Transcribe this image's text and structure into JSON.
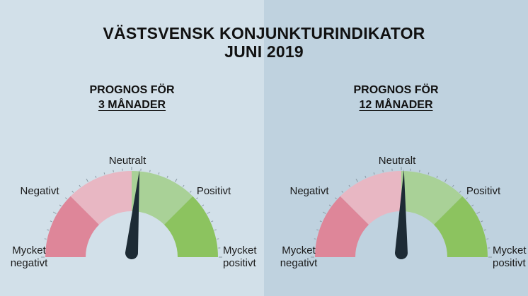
{
  "title_line1": "VÄSTSVENSK KONJUNKTURINDIKATOR",
  "title_line2": "JUNI 2019",
  "colors": {
    "background_left": "#d2e0e9",
    "background_right": "#bfd2df",
    "very_negative": "#de8699",
    "negative": "#e8b7c3",
    "positive": "#a9d197",
    "very_positive": "#8cc35f",
    "needle": "#1d2b35"
  },
  "chart_data": [
    {
      "type": "gauge",
      "heading_line1": "PROGNOS FÖR",
      "heading_line2": "3 MÅNADER",
      "scale": [
        "Mycket negativt",
        "Negativt",
        "Neutralt",
        "Positivt",
        "Mycket positivt"
      ],
      "labels": {
        "very_negative_line1": "Mycket",
        "very_negative_line2": "negativt",
        "negative": "Negativt",
        "neutral": "Neutralt",
        "positive": "Positivt",
        "very_positive_line1": "Mycket",
        "very_positive_line2": "positivt"
      },
      "value": 0.06,
      "range": [
        -1,
        1
      ]
    },
    {
      "type": "gauge",
      "heading_line1": "PROGNOS FÖR",
      "heading_line2": "12 MÅNADER",
      "scale": [
        "Mycket negativt",
        "Negativt",
        "Neutralt",
        "Positivt",
        "Mycket positivt"
      ],
      "labels": {
        "very_negative_line1": "Mycket",
        "very_negative_line2": "negativt",
        "negative": "Negativt",
        "neutral": "Neutralt",
        "positive": "Positivt",
        "very_positive_line1": "Mycket",
        "very_positive_line2": "positivt"
      },
      "value": 0.02,
      "range": [
        -1,
        1
      ]
    }
  ]
}
